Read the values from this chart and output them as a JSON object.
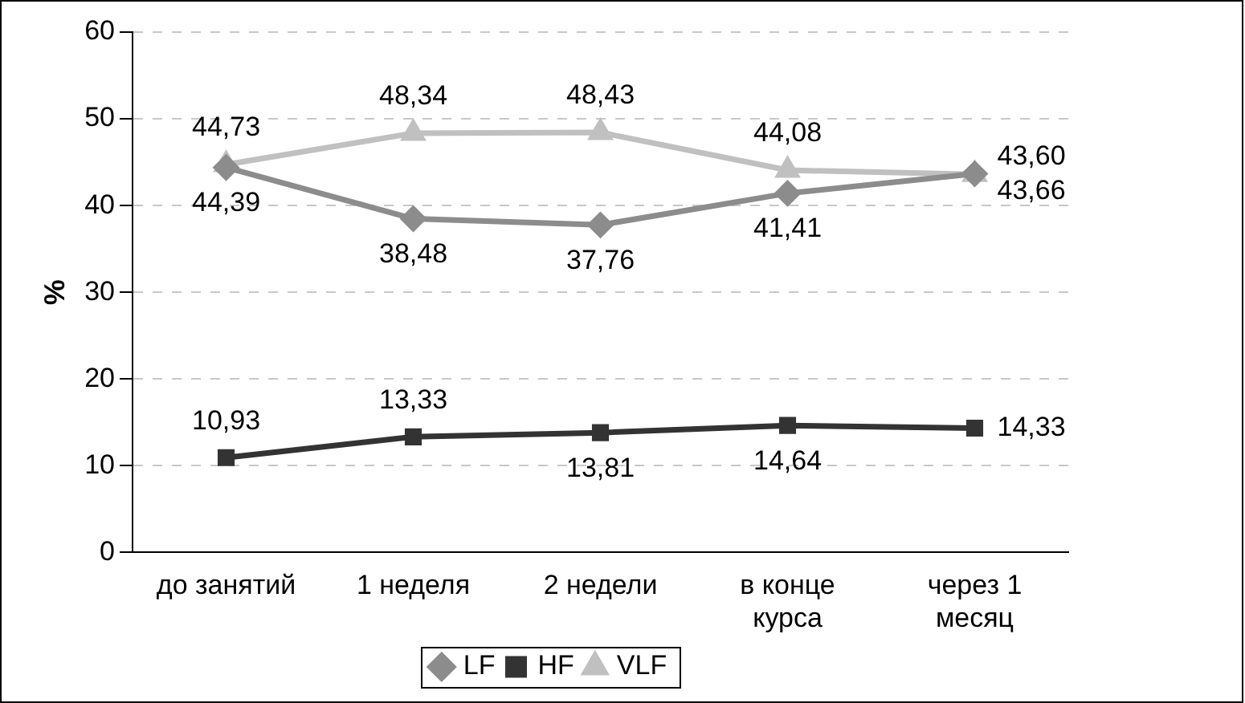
{
  "chart_data": {
    "type": "line",
    "ylabel": "%",
    "categories": [
      "до занятий",
      "1 неделя",
      "2 недели",
      "в конце курса",
      "через 1 месяц"
    ],
    "series": [
      {
        "name": "LF",
        "color": "#8c8c8c",
        "marker": "diamond",
        "values": [
          44.39,
          38.48,
          37.76,
          41.41,
          43.66
        ],
        "value_labels": [
          "44,39",
          "38,48",
          "37,76",
          "41,41",
          "43,66"
        ]
      },
      {
        "name": "HF",
        "color": "#333333",
        "marker": "square",
        "values": [
          10.93,
          13.33,
          13.81,
          14.64,
          14.33
        ],
        "value_labels": [
          "10,93",
          "13,33",
          "13,81",
          "14,64",
          "14,33"
        ]
      },
      {
        "name": "VLF",
        "color": "#c0c0c0",
        "marker": "triangle",
        "values": [
          44.73,
          48.34,
          48.43,
          44.08,
          43.6
        ],
        "value_labels": [
          "44,73",
          "48,34",
          "48,43",
          "44,08",
          "43,60"
        ]
      }
    ],
    "ylim": [
      0,
      60
    ],
    "yticks": [
      0,
      10,
      20,
      30,
      40,
      50,
      60
    ],
    "grid": "y",
    "legend": "bottom"
  }
}
